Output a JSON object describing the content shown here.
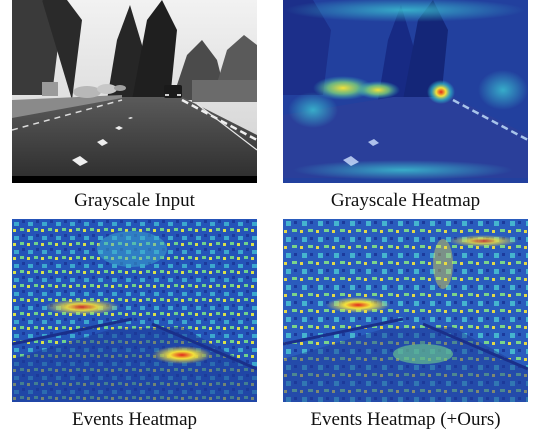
{
  "figure": {
    "panels": [
      {
        "caption": "Grayscale Input",
        "kind": "grayscale-road-photo"
      },
      {
        "caption": "Grayscale Heatmap",
        "kind": "attention-heatmap-overlay"
      },
      {
        "caption": "Events Heatmap",
        "kind": "event-heatmap"
      },
      {
        "caption": "Events Heatmap (+Ours)",
        "kind": "event-heatmap"
      }
    ],
    "colors": {
      "heat_low": "#1b2f9c",
      "heat_mid": "#2fb6c8",
      "heat_high": "#f4e23a",
      "heat_peak": "#e0261c",
      "sky": "#d9d9d9",
      "road": "#3f3f3f"
    }
  }
}
